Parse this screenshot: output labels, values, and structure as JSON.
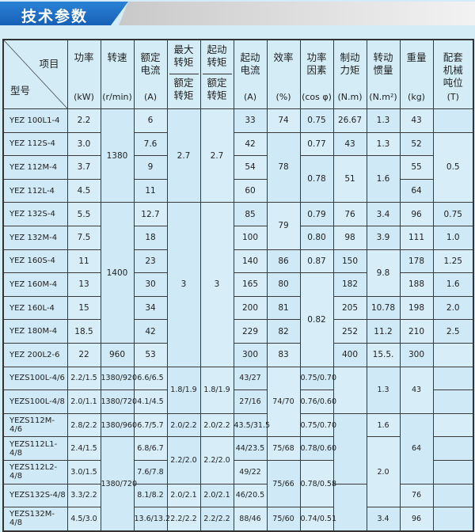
{
  "title": "技术参数",
  "header": {
    "model_label": "型号",
    "item_label": "项目",
    "columns": [
      {
        "label": "功率",
        "unit": "(kW)"
      },
      {
        "label": "转速",
        "unit": "(r/min)"
      },
      {
        "label": "额定\n电流",
        "unit": "(A)"
      },
      {
        "label": "最大\n转矩",
        "sub": "额定\n转矩"
      },
      {
        "label": "起动\n转矩",
        "sub": "额定\n转矩"
      },
      {
        "label": "起动\n电流",
        "unit": "(A)"
      },
      {
        "label": "效率",
        "unit": "(%)"
      },
      {
        "label": "功率\n因素",
        "unit": "(cos φ)"
      },
      {
        "label": "制动\n力矩",
        "unit": "(N.m)"
      },
      {
        "label": "转动\n惯量",
        "unit": "(N.m²)"
      },
      {
        "label": "重量",
        "unit": "(kg)"
      },
      {
        "label": "配套\n机械\n吨位",
        "unit": "(T)"
      }
    ]
  },
  "rows": [
    [
      "YEZ 100L1-4",
      "2.2",
      "1380",
      "6",
      "2.7",
      "2.7",
      "33",
      "74",
      "0.75",
      "26.67",
      "1.3",
      "43",
      ""
    ],
    [
      "YEZ 112S-4",
      "3.0",
      null,
      "7.6",
      null,
      null,
      "42",
      "78",
      "0.77",
      "43",
      "1.3",
      "52",
      "0.5"
    ],
    [
      "YEZ 112M-4",
      "3.7",
      null,
      "9",
      null,
      null,
      "54",
      null,
      "0.78",
      "51",
      "1.6",
      "55",
      null
    ],
    [
      "YEZ 112L-4",
      "4.5",
      null,
      "11",
      null,
      null,
      "60",
      null,
      null,
      null,
      null,
      "64",
      null
    ],
    [
      "YEZ 132S-4",
      "5.5",
      "1400",
      "12.7",
      "3",
      "3",
      "85",
      "79",
      "0.79",
      "76",
      "3.4",
      "96",
      "0.75"
    ],
    [
      "YEZ 132M-4",
      "7.5",
      null,
      "18",
      null,
      null,
      "100",
      null,
      "0.80",
      "98",
      "3.9",
      "111",
      "1.0"
    ],
    [
      "YEZ 160S-4",
      "11",
      null,
      "23",
      null,
      null,
      "140",
      "86",
      "0.87",
      "150",
      "9.8",
      "178",
      "1.25"
    ],
    [
      "YEZ 160M-4",
      "13",
      null,
      "30",
      null,
      null,
      "165",
      "80",
      "0.82",
      "182",
      null,
      "188",
      "1.6"
    ],
    [
      "YEZ 160L-4",
      "15",
      null,
      "34",
      null,
      null,
      "200",
      "81",
      null,
      "205",
      "10.78",
      "198",
      "2.0"
    ],
    [
      "YEZ 180M-4",
      "18.5",
      null,
      "42",
      null,
      null,
      "229",
      "82",
      null,
      "252",
      "11.2",
      "210",
      "2.5"
    ],
    [
      "YEZ 200L2-6",
      "22",
      "960",
      "53",
      null,
      null,
      "300",
      "83",
      null,
      "400",
      "15.5.",
      "300",
      ""
    ],
    [
      "YEZS100L-4/6",
      "2.2/1.5",
      "1380/920",
      "6.6/6.5",
      "1.8/1.9",
      "1.8/1.9",
      "43/27",
      "74/70",
      "0.75/0.70",
      "",
      "1.3",
      "43",
      ""
    ],
    [
      "YEZS100L-4/8",
      "2.0/1.1",
      "1380/720",
      "4.1/4.5",
      null,
      null,
      "27/16",
      null,
      "0.76/0.60",
      null,
      null,
      null,
      ""
    ],
    [
      "YEZS112M-4/6",
      "2.8/2.2",
      "1380/960",
      "6.7/5.7",
      "2.0/2.2",
      "2.0/2.2",
      "43.5/31.5",
      null,
      "0.75/0.70",
      "",
      "1.6",
      "64",
      ""
    ],
    [
      "YEZS112L1-4/8",
      "2.4/1.5",
      "1380/720",
      "6.8/6.7",
      "2.2/2.0",
      "2.2/2.0",
      "44/23.5",
      "75/68",
      "0.78/0.60",
      null,
      "2.0",
      null,
      ""
    ],
    [
      "YEZS112L2-4/8",
      "3.0/1.5",
      null,
      "7.6/7.8",
      null,
      null,
      "49/22",
      "75/66",
      "0.78/0.58",
      null,
      null,
      null,
      ""
    ],
    [
      "YEZS132S-4/8",
      "3.3/2.2",
      null,
      "8.1/8.2",
      "2.0/2.1",
      "2.0/2.1",
      "46/20.5",
      null,
      null,
      "",
      null,
      "76",
      ""
    ],
    [
      "YEZS132M-4/8",
      "4.5/3.0",
      null,
      "13.6/13.2",
      "2.2/2.2",
      "2.2/2.2",
      "88/46",
      "75/60",
      "0.74/0.51",
      null,
      "3.4",
      "96",
      ""
    ]
  ]
}
